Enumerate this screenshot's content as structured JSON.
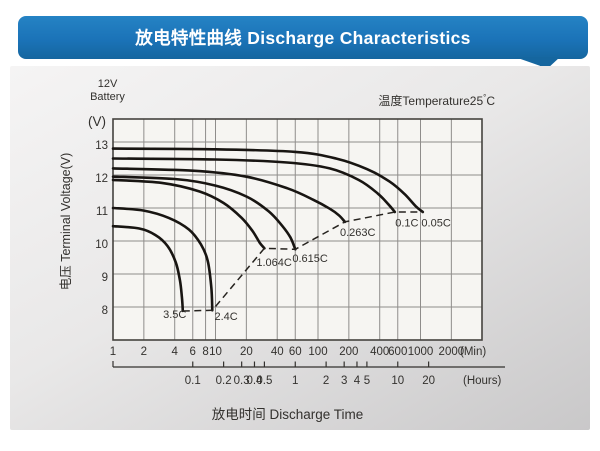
{
  "banner": {
    "title": "放电特性曲线 Discharge Characteristics",
    "bg": "#1b73b8"
  },
  "annotations": {
    "battery_line1": "12V",
    "battery_line2": "Battery",
    "temp_prefix": "温度Temperature25",
    "temp_degree": "°",
    "temp_unit": "C"
  },
  "chart_data": {
    "type": "line",
    "title": "放电特性曲线 Discharge Characteristics",
    "x_axis": {
      "scale": "log",
      "unit_minutes": "(Min)",
      "unit_hours": "(Hours)",
      "ticks_minutes": [
        1,
        2,
        4,
        6,
        8,
        10,
        20,
        40,
        60,
        100,
        200,
        400,
        600,
        1000,
        2000
      ],
      "ticks_hours": [
        0.1,
        0.2,
        0.3,
        0.4,
        0.5,
        1,
        2,
        3,
        4,
        5,
        10,
        20
      ],
      "xlabel": "放电时间 Discharge Time",
      "range_minutes": [
        1,
        3980
      ]
    },
    "y_axis": {
      "unit": "(V)",
      "label": "电压 Terminal Voltage(V)",
      "ticks": [
        8,
        9,
        10,
        11,
        12,
        13
      ],
      "range": [
        7,
        13.7
      ]
    },
    "series": [
      {
        "name": "3.5C",
        "points": [
          [
            1,
            10.45
          ],
          [
            1.8,
            10.38
          ],
          [
            2.6,
            10.18
          ],
          [
            3.4,
            9.85
          ],
          [
            4.1,
            9.35
          ],
          [
            4.5,
            8.8
          ],
          [
            4.7,
            8.3
          ],
          [
            4.8,
            7.88
          ]
        ],
        "label_at": [
          4.0,
          7.79
        ]
      },
      {
        "name": "2.4C",
        "points": [
          [
            1,
            11.0
          ],
          [
            2,
            10.92
          ],
          [
            3.5,
            10.7
          ],
          [
            5.5,
            10.35
          ],
          [
            7.2,
            9.9
          ],
          [
            8.4,
            9.4
          ],
          [
            9.1,
            8.6
          ],
          [
            9.3,
            7.9
          ]
        ],
        "label_at": [
          12.7,
          7.73
        ]
      },
      {
        "name": "1.064C",
        "points": [
          [
            1,
            11.85
          ],
          [
            3,
            11.76
          ],
          [
            7,
            11.5
          ],
          [
            12,
            11.15
          ],
          [
            18,
            10.7
          ],
          [
            23,
            10.3
          ],
          [
            27,
            9.95
          ],
          [
            30,
            9.78
          ]
        ],
        "label_at": [
          37.3,
          9.36
        ]
      },
      {
        "name": "0.615C",
        "points": [
          [
            1,
            11.95
          ],
          [
            4,
            11.88
          ],
          [
            10,
            11.68
          ],
          [
            20,
            11.35
          ],
          [
            33,
            10.9
          ],
          [
            45,
            10.45
          ],
          [
            54,
            10.1
          ],
          [
            60,
            9.75
          ]
        ],
        "label_at": [
          83.8,
          9.48
        ]
      },
      {
        "name": "0.263C",
        "points": [
          [
            1,
            12.2
          ],
          [
            6,
            12.13
          ],
          [
            20,
            11.95
          ],
          [
            50,
            11.6
          ],
          [
            90,
            11.25
          ],
          [
            130,
            10.98
          ],
          [
            160,
            10.78
          ],
          [
            183,
            10.58
          ]
        ],
        "label_at": [
          244,
          10.27
        ]
      },
      {
        "name": "0.1C",
        "points": [
          [
            1,
            12.5
          ],
          [
            10,
            12.47
          ],
          [
            50,
            12.38
          ],
          [
            130,
            12.2
          ],
          [
            250,
            11.85
          ],
          [
            380,
            11.45
          ],
          [
            490,
            11.1
          ],
          [
            562,
            10.88
          ]
        ],
        "label_at": [
          736,
          10.55
        ]
      },
      {
        "name": "0.05C",
        "points": [
          [
            1,
            12.8
          ],
          [
            10,
            12.78
          ],
          [
            60,
            12.7
          ],
          [
            150,
            12.5
          ],
          [
            300,
            12.18
          ],
          [
            500,
            11.8
          ],
          [
            700,
            11.42
          ],
          [
            900,
            11.05
          ],
          [
            1052,
            10.88
          ]
        ],
        "label_at": [
          1420,
          10.55
        ]
      }
    ],
    "colors": {
      "curve": "#181512",
      "grid": "#8f8d8b",
      "frame": "#45433f",
      "plot_bg": "#f6f5f2",
      "dashed": "#26231f",
      "text": "#33312e"
    }
  }
}
